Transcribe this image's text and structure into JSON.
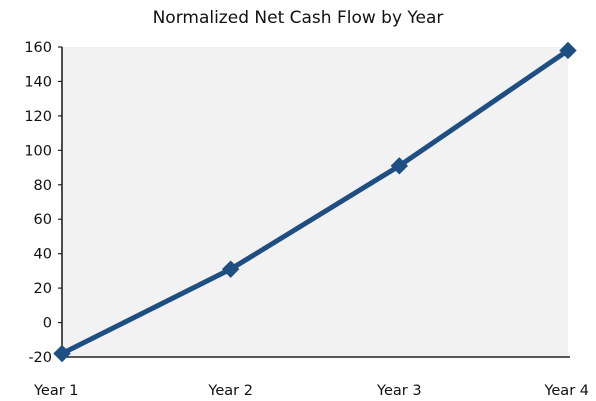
{
  "chart_data": {
    "type": "line",
    "title": "Normalized Net Cash Flow by Year",
    "categories": [
      "Year 1",
      "Year 2",
      "Year 3",
      "Year 4"
    ],
    "series": [
      {
        "values": [
          -18,
          31,
          91,
          158
        ],
        "color": "#1f4e82"
      }
    ],
    "ylim": [
      -20,
      160
    ],
    "yticks": [
      -20,
      0,
      20,
      40,
      60,
      80,
      100,
      120,
      140,
      160
    ],
    "grid": false,
    "plot_background": "#f2f2f2",
    "marker": "diamond"
  }
}
